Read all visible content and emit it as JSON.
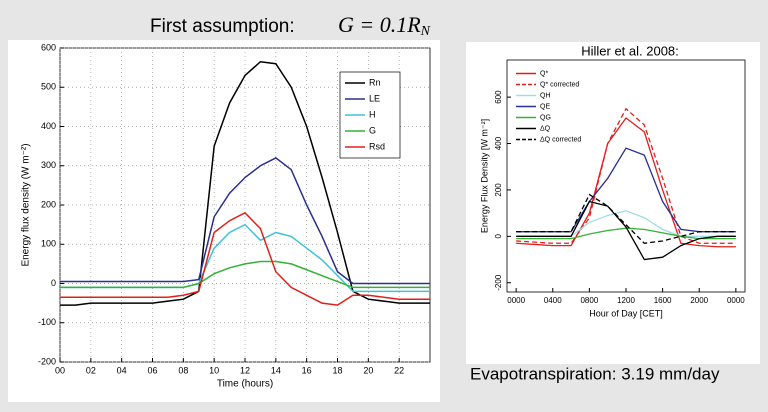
{
  "title": "First assumption:",
  "formula": "G = 0.1R",
  "formula_sub": "N",
  "footer": "Evapotranspiration: 3.19 mm/day",
  "chart_data": [
    {
      "type": "line",
      "xlabel": "Time (hours)",
      "ylabel": "Energy flux density (W m⁻²)",
      "x": [
        0,
        1,
        2,
        3,
        4,
        5,
        6,
        7,
        8,
        9,
        10,
        11,
        12,
        13,
        14,
        15,
        16,
        17,
        18,
        19,
        20,
        21,
        22,
        23,
        24
      ],
      "xlim": [
        0,
        24
      ],
      "ylim": [
        -200,
        600
      ],
      "xticks": [
        {
          "value": 0,
          "label": "00"
        },
        {
          "value": 2,
          "label": "02"
        },
        {
          "value": 4,
          "label": "04"
        },
        {
          "value": 6,
          "label": "06"
        },
        {
          "value": 8,
          "label": "08"
        },
        {
          "value": 10,
          "label": "10"
        },
        {
          "value": 12,
          "label": "12"
        },
        {
          "value": 14,
          "label": "14"
        },
        {
          "value": 16,
          "label": "16"
        },
        {
          "value": 18,
          "label": "18"
        },
        {
          "value": 20,
          "label": "20"
        },
        {
          "value": 22,
          "label": "22"
        }
      ],
      "yticks": [
        -200,
        -100,
        0,
        100,
        200,
        300,
        400,
        500,
        600
      ],
      "grid": true,
      "legend": "upper right",
      "series": [
        {
          "name": "Rn",
          "color": "#000000",
          "values": [
            -55,
            -55,
            -50,
            -50,
            -50,
            -50,
            -50,
            -45,
            -40,
            -20,
            350,
            460,
            530,
            565,
            560,
            500,
            400,
            270,
            130,
            -20,
            -40,
            -45,
            -50,
            -50,
            -50
          ]
        },
        {
          "name": "LE",
          "color": "#2b2f8f",
          "values": [
            5,
            5,
            5,
            5,
            5,
            5,
            5,
            5,
            5,
            10,
            170,
            230,
            270,
            300,
            320,
            290,
            200,
            120,
            30,
            0,
            0,
            0,
            0,
            0,
            0
          ]
        },
        {
          "name": "H",
          "color": "#3cc3d8",
          "values": [
            -10,
            -10,
            -10,
            -10,
            -10,
            -10,
            -10,
            -10,
            -10,
            0,
            90,
            130,
            150,
            110,
            130,
            120,
            90,
            60,
            20,
            -20,
            -20,
            -20,
            -20,
            -20,
            -20
          ]
        },
        {
          "name": "G",
          "color": "#33b233",
          "values": [
            -10,
            -10,
            -10,
            -10,
            -10,
            -10,
            -10,
            -10,
            -10,
            0,
            25,
            40,
            50,
            56,
            56,
            50,
            35,
            20,
            5,
            -10,
            -10,
            -10,
            -10,
            -10,
            -10
          ]
        },
        {
          "name": "Rsd",
          "color": "#e0201b",
          "values": [
            -35,
            -35,
            -35,
            -35,
            -35,
            -35,
            -35,
            -35,
            -30,
            -20,
            130,
            160,
            180,
            140,
            30,
            -10,
            -30,
            -50,
            -55,
            -30,
            -30,
            -35,
            -40,
            -40,
            -40
          ]
        }
      ]
    },
    {
      "type": "line",
      "title": "Hiller et al. 2008:",
      "xlabel": "Hour of Day [CET]",
      "ylabel": "Energy Flux Density [W m⁻²]",
      "x": [
        0,
        2,
        4,
        6,
        8,
        10,
        12,
        14,
        16,
        18,
        20,
        22,
        24
      ],
      "xlim": [
        -1,
        25
      ],
      "ylim": [
        -240,
        760
      ],
      "xticks": [
        {
          "value": 0,
          "label": "0000"
        },
        {
          "value": 4,
          "label": "0400"
        },
        {
          "value": 8,
          "label": "0800"
        },
        {
          "value": 12,
          "label": "1200"
        },
        {
          "value": 16,
          "label": "1600"
        },
        {
          "value": 20,
          "label": "2000"
        },
        {
          "value": 24,
          "label": "0000"
        }
      ],
      "yticks": [
        -200,
        0,
        200,
        400,
        600
      ],
      "grid": false,
      "legend": "upper left",
      "series": [
        {
          "name": "Q*",
          "color": "#e0201b",
          "dash": false,
          "values": [
            -30,
            -35,
            -40,
            -40,
            100,
            400,
            510,
            450,
            200,
            -30,
            -40,
            -45,
            -45
          ]
        },
        {
          "name": "Q* corrected",
          "color": "#e0201b",
          "dash": true,
          "values": [
            -20,
            -25,
            -30,
            -30,
            80,
            400,
            550,
            480,
            250,
            0,
            -30,
            -30,
            -30
          ]
        },
        {
          "name": "QH",
          "color": "#9fdcea",
          "dash": false,
          "values": [
            0,
            0,
            0,
            0,
            60,
            90,
            110,
            80,
            30,
            0,
            0,
            0,
            0
          ]
        },
        {
          "name": "QE",
          "color": "#2b2f8f",
          "dash": false,
          "values": [
            20,
            20,
            20,
            20,
            150,
            250,
            380,
            350,
            150,
            30,
            20,
            20,
            20
          ]
        },
        {
          "name": "QG",
          "color": "#33b233",
          "dash": false,
          "values": [
            -10,
            -10,
            -10,
            -10,
            10,
            25,
            35,
            30,
            15,
            0,
            -10,
            -10,
            -10
          ]
        },
        {
          "name": "ΔQ",
          "color": "#000000",
          "dash": false,
          "values": [
            0,
            0,
            0,
            0,
            150,
            130,
            40,
            -100,
            -90,
            -40,
            -10,
            0,
            0
          ]
        },
        {
          "name": "ΔQ corrected",
          "color": "#000000",
          "dash": true,
          "values": [
            20,
            20,
            20,
            20,
            180,
            130,
            50,
            -30,
            -20,
            0,
            20,
            20,
            20
          ]
        }
      ]
    }
  ]
}
